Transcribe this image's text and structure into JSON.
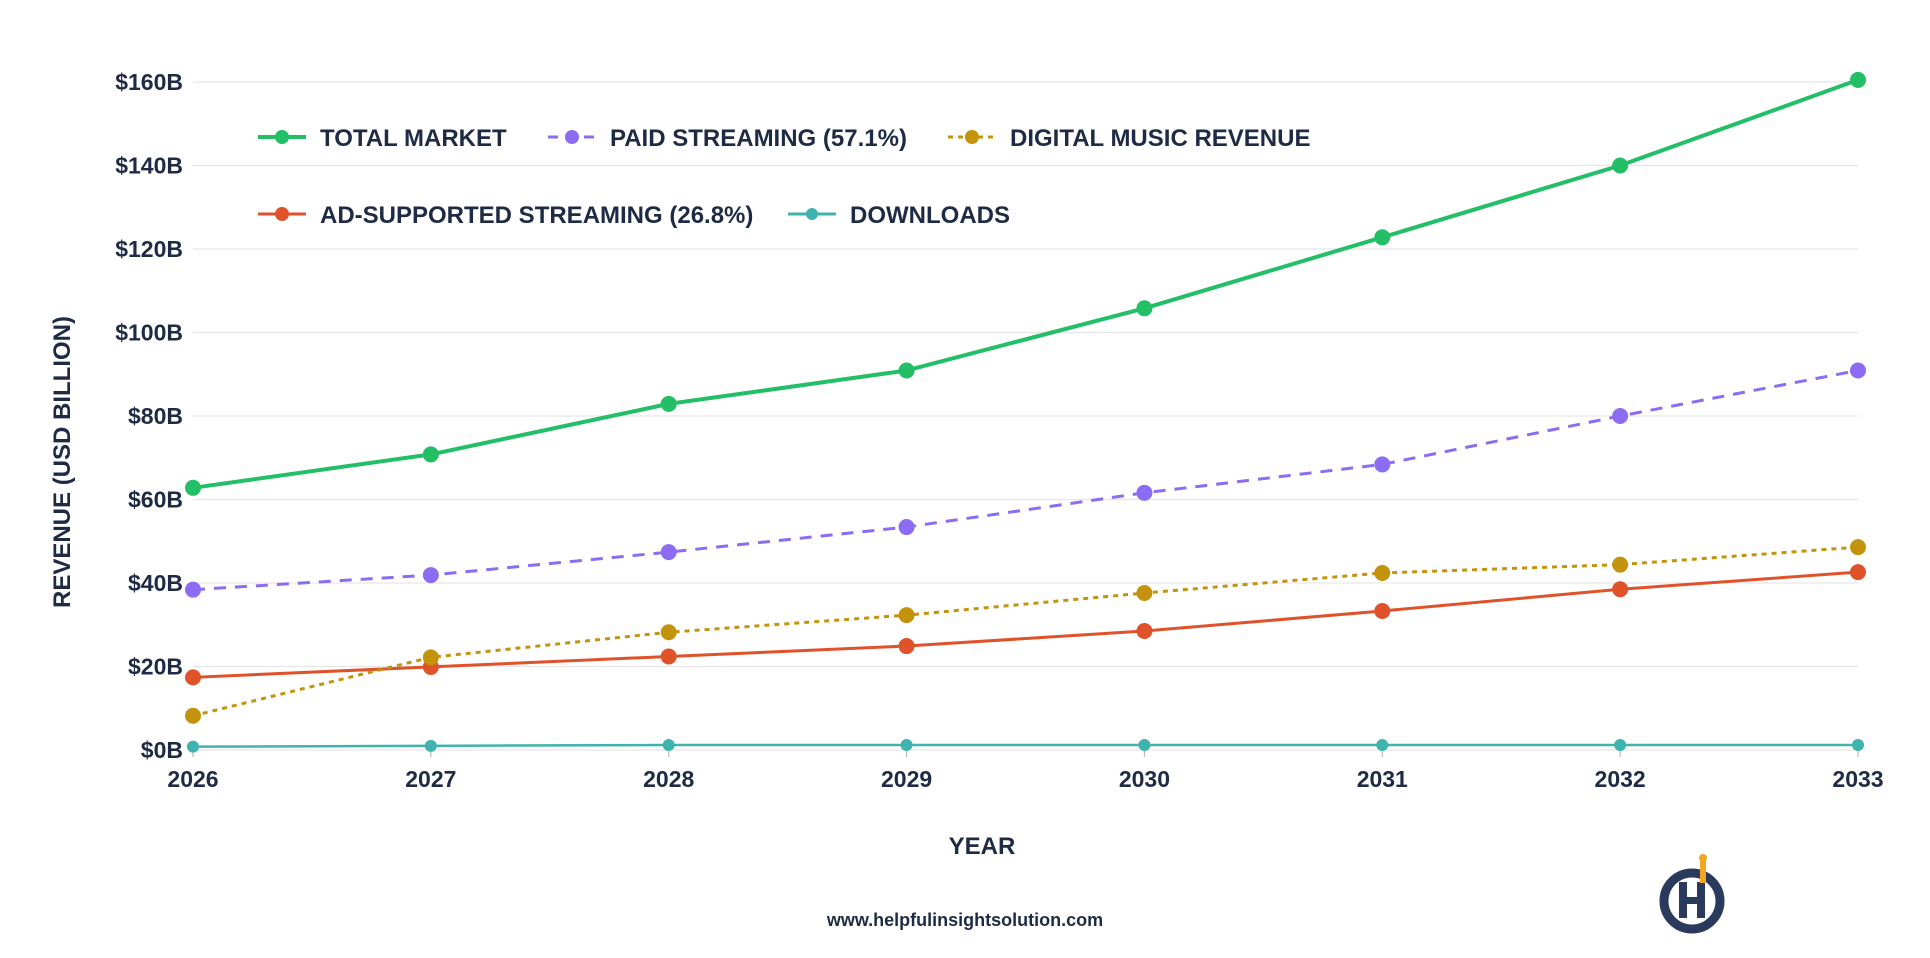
{
  "footer": {
    "url": "www.helpfulinsightsolution.com"
  },
  "colors": {
    "total": "#22bf66",
    "paid": "#8b6cf2",
    "digital": "#c4930e",
    "ad": "#e0522a",
    "downloads": "#3fb3ad",
    "text": "#1f2a44",
    "grid": "#e6e6e6",
    "logo_dark": "#2a3a5c",
    "logo_accent": "#f2a623"
  },
  "chart_data": {
    "type": "line",
    "x": [
      2026,
      2027,
      2028,
      2029,
      2030,
      2031,
      2032,
      2033
    ],
    "ylim": [
      0,
      160
    ],
    "y_ticks": [
      0,
      20,
      40,
      60,
      80,
      100,
      120,
      140,
      160
    ],
    "y_tick_labels": [
      "$0B",
      "$20B",
      "$40B",
      "$60B",
      "$80B",
      "$100B",
      "$120B",
      "$140B",
      "$160B"
    ],
    "x_tick_labels": [
      "2026",
      "2027",
      "2028",
      "2029",
      "2030",
      "2031",
      "2032",
      "2033"
    ],
    "xlabel": "YEAR",
    "ylabel": "REVENUE (USD BILLION)",
    "grid": true,
    "legend_position": "top-left",
    "series": [
      {
        "key": "total",
        "name": "TOTAL MARKET",
        "dash": "solid",
        "values": [
          62.8,
          70.8,
          82.9,
          90.9,
          105.8,
          122.8,
          140.0,
          160.5
        ]
      },
      {
        "key": "paid",
        "name": "PAID STREAMING (57.1%)",
        "dash": "dashed",
        "values": [
          38.4,
          41.9,
          47.4,
          53.4,
          61.6,
          68.4,
          80.0,
          90.9
        ]
      },
      {
        "key": "digital",
        "name": "DIGITAL MUSIC REVENUE",
        "dash": "dotted",
        "values": [
          8.2,
          22.2,
          28.2,
          32.3,
          37.6,
          42.4,
          44.4,
          48.6
        ]
      },
      {
        "key": "ad",
        "name": "AD-SUPPORTED STREAMING (26.8%)",
        "dash": "solid",
        "values": [
          17.4,
          19.9,
          22.4,
          24.9,
          28.5,
          33.3,
          38.5,
          42.6
        ]
      },
      {
        "key": "downloads",
        "name": "DOWNLOADS",
        "dash": "solid",
        "values": [
          0.8,
          1.0,
          1.2,
          1.2,
          1.2,
          1.2,
          1.2,
          1.2
        ]
      }
    ]
  }
}
